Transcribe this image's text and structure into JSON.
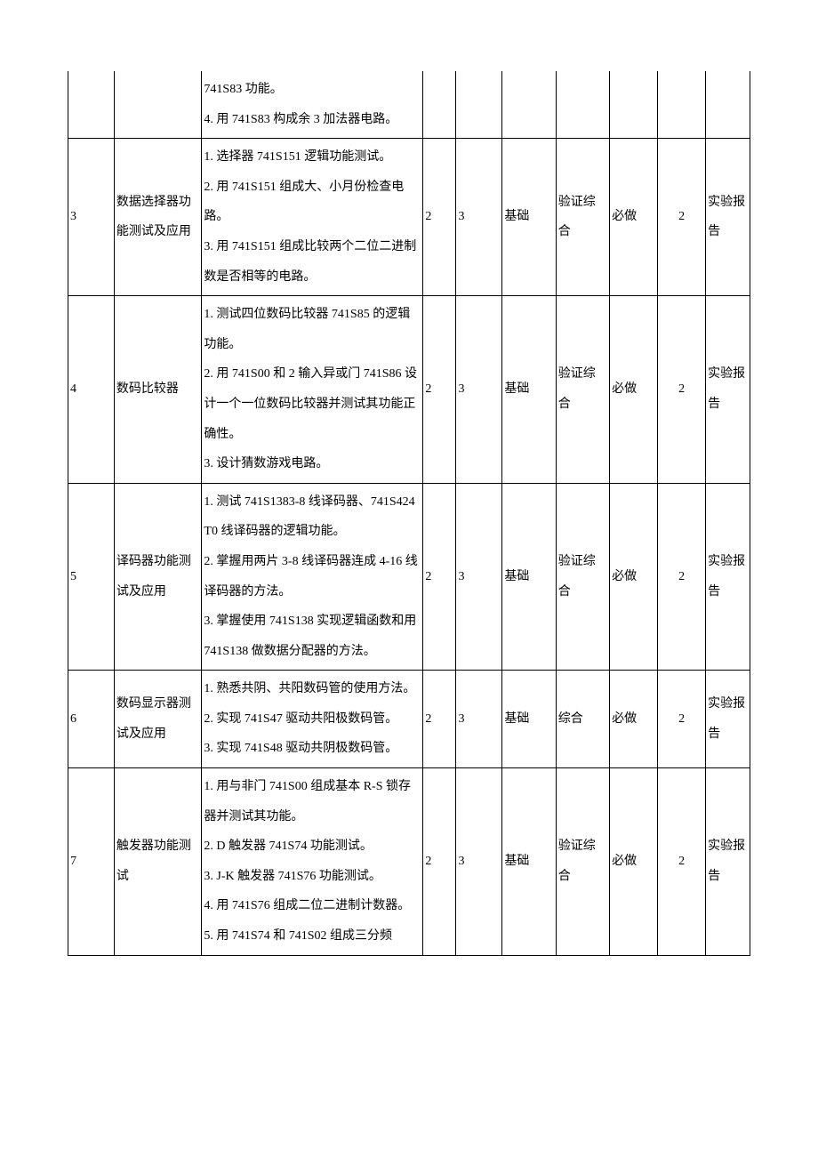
{
  "table": {
    "columns": [
      "col-idx",
      "col-name",
      "col-cont",
      "col-c4",
      "col-c5",
      "col-c6",
      "col-c7",
      "col-c8",
      "col-c9",
      "col-c10"
    ],
    "rows": [
      {
        "idx": "",
        "name": "",
        "content": "741S83 功能。\n4. 用 741S83 构成余 3 加法器电路。",
        "c4": "",
        "c5": "",
        "c6": "",
        "c7": "",
        "c8": "",
        "c9": "",
        "c10": "",
        "continuation": true
      },
      {
        "idx": "3",
        "name": "数据选择器功能测试及应用",
        "content": "1. 选择器 741S151 逻辑功能测试。\n2. 用 741S151 组成大、小月份检查电路。\n3. 用 741S151 组成比较两个二位二进制数是否相等的电路。",
        "c4": "2",
        "c5": "3",
        "c6": "基础",
        "c7": "验证综合",
        "c8": "必做",
        "c9": "2",
        "c10": "实验报告"
      },
      {
        "idx": "4",
        "name": "数码比较器",
        "content": "1. 测试四位数码比较器 741S85 的逻辑功能。\n2. 用 741S00 和 2 输入异或门 741S86 设计一个一位数码比较器并测试其功能正确性。\n3. 设计猜数游戏电路。",
        "c4": "2",
        "c5": "3",
        "c6": "基础",
        "c7": "验证综合",
        "c8": "必做",
        "c9": "2",
        "c10": "实验报告"
      },
      {
        "idx": "5",
        "name": "译码器功能测试及应用",
        "content": "1. 测试 741S1383-8 线译码器、741S424T0 线译码器的逻辑功能。\n2. 掌握用两片 3-8 线译码器连成 4-16 线译码器的方法。\n3. 掌握使用 741S138 实现逻辑函数和用 741S138 做数据分配器的方法。",
        "c4": "2",
        "c5": "3",
        "c6": "基础",
        "c7": "验证综合",
        "c8": "必做",
        "c9": "2",
        "c10": "实验报告"
      },
      {
        "idx": "6",
        "name": "数码显示器测试及应用",
        "content": "1. 熟悉共阴、共阳数码管的使用方法。\n2. 实现 741S47 驱动共阳极数码管。\n3. 实现 741S48 驱动共阴极数码管。",
        "c4": "2",
        "c5": "3",
        "c6": "基础",
        "c7": "综合",
        "c8": "必做",
        "c9": "2",
        "c10": "实验报告"
      },
      {
        "idx": "7",
        "name": "触发器功能测试",
        "content": "1. 用与非门 741S00 组成基本 R-S 锁存器并测试其功能。\n2. D 触发器 741S74 功能测试。\n3. J-K 触发器 741S76 功能测试。\n4. 用 741S76 组成二位二进制计数器。\n5. 用 741S74 和 741S02 组成三分频",
        "c4": "2",
        "c5": "3",
        "c6": "基础",
        "c7": "验证综合",
        "c8": "必做",
        "c9": "2",
        "c10": "实验报告"
      }
    ]
  }
}
